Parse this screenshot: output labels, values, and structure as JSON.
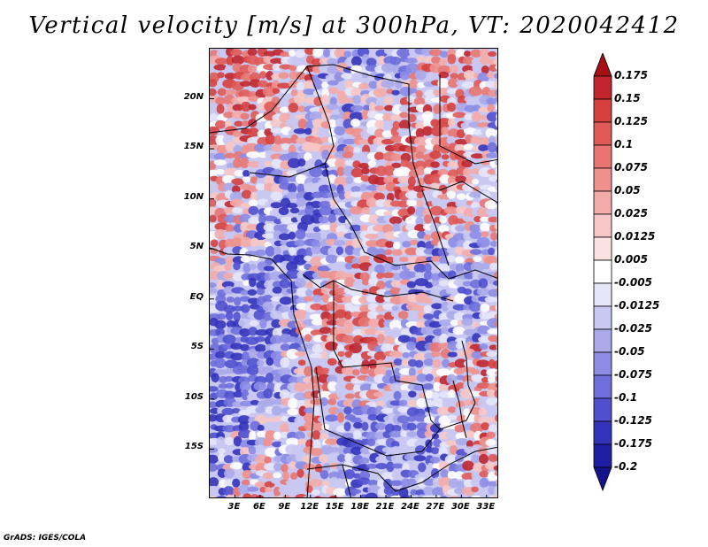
{
  "title": "Vertical velocity [m/s] at 300hPa, VT: 2020042412",
  "credit": "GrADS: IGES/COLA",
  "latitude_labels": [
    {
      "text": "20N",
      "value": 20
    },
    {
      "text": "15N",
      "value": 15
    },
    {
      "text": "10N",
      "value": 10
    },
    {
      "text": "5N",
      "value": 5
    },
    {
      "text": "EQ",
      "value": 0
    },
    {
      "text": "5S",
      "value": -5
    },
    {
      "text": "10S",
      "value": -10
    },
    {
      "text": "15S",
      "value": -15
    }
  ],
  "longitude_labels": [
    {
      "text": "3E",
      "value": 3
    },
    {
      "text": "6E",
      "value": 6
    },
    {
      "text": "9E",
      "value": 9
    },
    {
      "text": "12E",
      "value": 12
    },
    {
      "text": "15E",
      "value": 15
    },
    {
      "text": "18E",
      "value": 18
    },
    {
      "text": "21E",
      "value": 21
    },
    {
      "text": "24E",
      "value": 24
    },
    {
      "text": "27E",
      "value": 27
    },
    {
      "text": "30E",
      "value": 30
    },
    {
      "text": "33E",
      "value": 33
    }
  ],
  "map_extent": {
    "lon_min": 0,
    "lon_max": 34.5,
    "lat_min": -20,
    "lat_max": 25
  },
  "colorbar": {
    "labels": [
      "0.175",
      "0.15",
      "0.125",
      "0.1",
      "0.075",
      "0.05",
      "0.025",
      "0.0125",
      "0.005",
      "-0.005",
      "-0.0125",
      "-0.025",
      "-0.05",
      "-0.075",
      "-0.1",
      "-0.125",
      "-0.175",
      "-0.2"
    ],
    "colors": [
      "#a50f15",
      "#c0272d",
      "#d6403e",
      "#e05a57",
      "#e87572",
      "#ef908c",
      "#f4aba8",
      "#f8c6c4",
      "#fbe2e0",
      "#ffffff",
      "#e6e6fa",
      "#c8c8f2",
      "#aaaaeb",
      "#8c8ce4",
      "#6e6edc",
      "#5050cf",
      "#3434bb",
      "#1f1fa3",
      "#14148a"
    ]
  }
}
